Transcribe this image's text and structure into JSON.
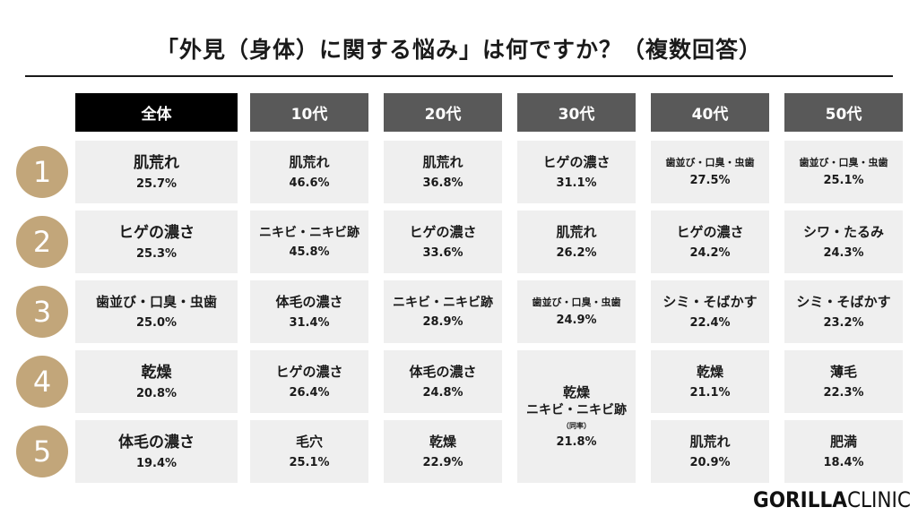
{
  "title": "「外見（身体）に関する悩み」は何ですか？（複数回答）",
  "logo": {
    "part1": "GORILLA",
    "part2": "CLINIC"
  },
  "colors": {
    "all_header": "#000000",
    "age_header": "#595959",
    "rank_circle": "#c2a67a",
    "cell_bg": "#efefef"
  },
  "chart_data": {
    "type": "table",
    "columns": [
      "全体",
      "10代",
      "20代",
      "30代",
      "40代",
      "50代"
    ],
    "ranks": [
      "1",
      "2",
      "3",
      "4",
      "5"
    ],
    "cells": [
      [
        {
          "label": "肌荒れ",
          "value": "25.7%"
        },
        {
          "label": "肌荒れ",
          "value": "46.6%"
        },
        {
          "label": "肌荒れ",
          "value": "36.8%"
        },
        {
          "label": "ヒゲの濃さ",
          "value": "31.1%"
        },
        {
          "label": "歯並び・口臭・虫歯",
          "value": "27.5%"
        },
        {
          "label": "歯並び・口臭・虫歯",
          "value": "25.1%"
        }
      ],
      [
        {
          "label": "ヒゲの濃さ",
          "value": "25.3%"
        },
        {
          "label": "ニキビ・ニキビ跡",
          "value": "45.8%"
        },
        {
          "label": "ヒゲの濃さ",
          "value": "33.6%"
        },
        {
          "label": "肌荒れ",
          "value": "26.2%"
        },
        {
          "label": "ヒゲの濃さ",
          "value": "24.2%"
        },
        {
          "label": "シワ・たるみ",
          "value": "24.3%"
        }
      ],
      [
        {
          "label": "歯並び・口臭・虫歯",
          "value": "25.0%"
        },
        {
          "label": "体毛の濃さ",
          "value": "31.4%"
        },
        {
          "label": "ニキビ・ニキビ跡",
          "value": "28.9%"
        },
        {
          "label": "歯並び・口臭・虫歯",
          "value": "24.9%"
        },
        {
          "label": "シミ・そばかす",
          "value": "22.4%"
        },
        {
          "label": "シミ・そばかす",
          "value": "23.2%"
        }
      ],
      [
        {
          "label": "乾燥",
          "value": "20.8%"
        },
        {
          "label": "ヒゲの濃さ",
          "value": "26.4%"
        },
        {
          "label": "体毛の濃さ",
          "value": "24.8%"
        },
        {
          "label": "乾燥\nニキビ・ニキビ跡",
          "value": "21.8%",
          "note": "（同率）",
          "span": 2
        },
        {
          "label": "乾燥",
          "value": "21.1%"
        },
        {
          "label": "薄毛",
          "value": "22.3%"
        }
      ],
      [
        {
          "label": "体毛の濃さ",
          "value": "19.4%"
        },
        {
          "label": "毛穴",
          "value": "25.1%"
        },
        {
          "label": "乾燥",
          "value": "22.9%"
        },
        null,
        {
          "label": "肌荒れ",
          "value": "20.9%"
        },
        {
          "label": "肥満",
          "value": "18.4%"
        }
      ]
    ]
  }
}
